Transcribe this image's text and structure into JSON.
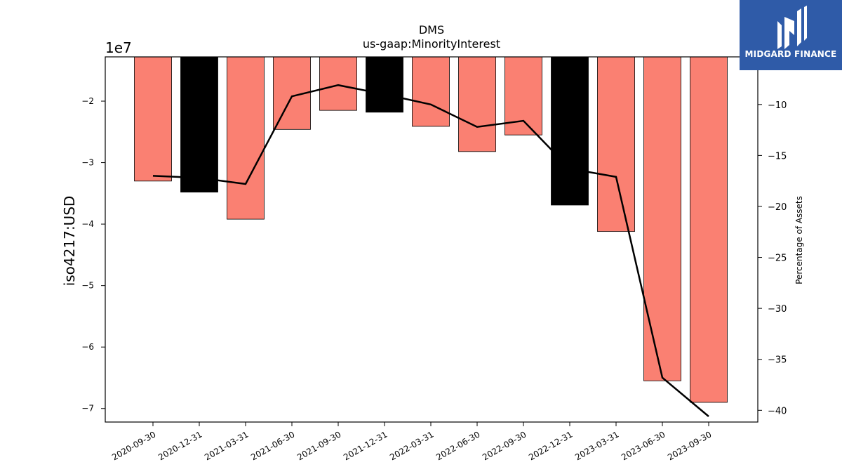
{
  "chart_data": {
    "type": "bar",
    "title": "DMS",
    "subtitle": "us-gaap:MinorityInterest",
    "ylabel": "iso4217:USD",
    "y_offset_label": "1e7",
    "y2label": "Percentage of Assets",
    "categories": [
      "2020-09-30",
      "2020-12-31",
      "2021-03-31",
      "2021-06-30",
      "2021-09-30",
      "2021-12-31",
      "2022-03-31",
      "2022-06-30",
      "2022-09-30",
      "2022-12-31",
      "2023-03-31",
      "2023-06-30",
      "2023-09-30"
    ],
    "series": [
      {
        "type": "bar",
        "values": [
          -33000000,
          -34800000,
          -39200000,
          -24600000,
          -21500000,
          -21800000,
          -24100000,
          -28200000,
          -25500000,
          -36900000,
          -41200000,
          -65500000,
          -69000000
        ],
        "highlight": [
          false,
          true,
          false,
          false,
          false,
          true,
          false,
          false,
          false,
          true,
          false,
          false,
          false
        ]
      },
      {
        "type": "line",
        "axis": "right",
        "values": [
          -17.0,
          -17.2,
          -17.8,
          -9.2,
          -8.1,
          -9.0,
          -10.0,
          -12.2,
          -11.6,
          -16.3,
          -17.1,
          -36.8,
          -40.6
        ]
      }
    ],
    "ylim": [
      -7.22,
      -1.28
    ],
    "yticks": [
      -2,
      -3,
      -4,
      -5,
      -6,
      -7
    ],
    "y2lim": [
      -41.15,
      -5.33
    ],
    "y2ticks": [
      -10,
      -15,
      -20,
      -25,
      -30,
      -35,
      -40
    ],
    "colors": {
      "bar": "#fa8072",
      "bar_highlight": "#000000",
      "line": "#000000"
    }
  },
  "logo": {
    "text": "MIDGARD FINANCE"
  }
}
